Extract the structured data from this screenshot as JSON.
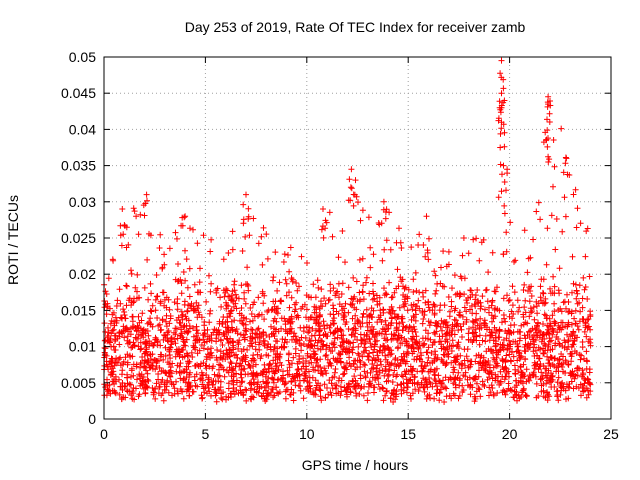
{
  "chart_data": {
    "type": "scatter",
    "title": "Day 253 of 2019, Rate Of TEC Index for receiver zamb",
    "xlabel": "GPS time / hours",
    "ylabel": "ROTI / TECUs",
    "xlim": [
      0,
      25
    ],
    "ylim": [
      0,
      0.05
    ],
    "xticks": [
      0,
      5,
      10,
      15,
      20,
      25
    ],
    "yticks": [
      0,
      0.005,
      0.01,
      0.015,
      0.02,
      0.025,
      0.03,
      0.035,
      0.04,
      0.045,
      0.05
    ],
    "xtick_labels": [
      "0",
      "5",
      "10",
      "15",
      "20",
      "25"
    ],
    "ytick_labels": [
      "0",
      "0.005",
      "0.01",
      "0.015",
      "0.02",
      "0.025",
      "0.03",
      "0.035",
      "0.04",
      "0.045",
      "0.05"
    ],
    "grid": true,
    "marker": "+",
    "color": "#ff0000",
    "series": [
      {
        "name": "ROTI",
        "data_extent": {
          "x_min": 0,
          "x_max": 24,
          "bulk_y_min": 0.003,
          "bulk_y_max": 0.02
        },
        "envelope_hours": [
          0,
          1,
          2,
          3,
          4,
          5,
          6,
          7,
          8,
          9,
          10,
          11,
          12,
          13,
          14,
          15,
          16,
          17,
          18,
          19,
          20,
          21,
          22,
          23,
          24
        ],
        "envelope_upper": [
          0.022,
          0.029,
          0.031,
          0.024,
          0.028,
          0.026,
          0.025,
          0.031,
          0.026,
          0.025,
          0.024,
          0.029,
          0.033,
          0.029,
          0.03,
          0.026,
          0.027,
          0.025,
          0.025,
          0.026,
          0.036,
          0.025,
          0.045,
          0.036,
          0.027
        ],
        "peaks": [
          {
            "x": 0.9,
            "y": 0.029
          },
          {
            "x": 2.1,
            "y": 0.031
          },
          {
            "x": 4.0,
            "y": 0.028
          },
          {
            "x": 7.0,
            "y": 0.031
          },
          {
            "x": 10.8,
            "y": 0.029
          },
          {
            "x": 12.2,
            "y": 0.0345
          },
          {
            "x": 12.4,
            "y": 0.033
          },
          {
            "x": 13.8,
            "y": 0.03
          },
          {
            "x": 15.9,
            "y": 0.028
          },
          {
            "x": 19.6,
            "y": 0.0495
          },
          {
            "x": 19.6,
            "y": 0.045
          },
          {
            "x": 19.6,
            "y": 0.043
          },
          {
            "x": 19.6,
            "y": 0.041
          },
          {
            "x": 19.7,
            "y": 0.035
          },
          {
            "x": 21.9,
            "y": 0.0445
          },
          {
            "x": 21.9,
            "y": 0.0435
          },
          {
            "x": 21.8,
            "y": 0.0385
          },
          {
            "x": 22.8,
            "y": 0.036
          }
        ]
      }
    ]
  }
}
